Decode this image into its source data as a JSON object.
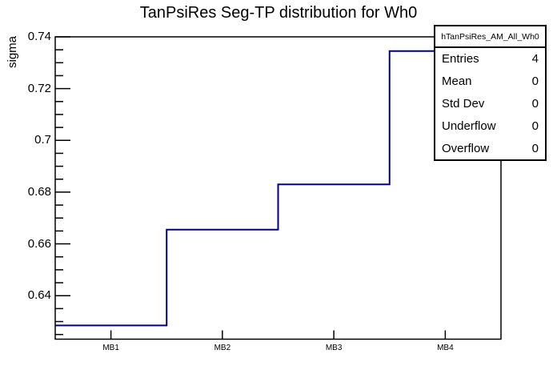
{
  "chart_data": {
    "type": "step-histogram",
    "title": "TanPsiRes Seg-TP distribution for Wh0",
    "ylabel": "sigma",
    "xlabel": "",
    "categories": [
      "MB1",
      "MB2",
      "MB3",
      "MB4"
    ],
    "values": [
      0.6285,
      0.6655,
      0.683,
      0.7345
    ],
    "ylim": [
      0.6232,
      0.74
    ],
    "ytick_labels": [
      "0.64",
      "0.66",
      "0.68",
      "0.7",
      "0.72",
      "0.74"
    ],
    "ytick_minor_step": 0.005,
    "ytick_major_step": 0.02,
    "grid": "off",
    "line_color": "#000080",
    "frame_color": "#000000",
    "background_color": "#ffffff",
    "legend_position": "top-right"
  },
  "stats_box": {
    "title": "hTanPsiRes_AM_All_Wh0",
    "rows": [
      {
        "label": "Entries",
        "value": "4"
      },
      {
        "label": "Mean",
        "value": "0"
      },
      {
        "label": "Std Dev",
        "value": "0"
      },
      {
        "label": "Underflow",
        "value": "0"
      },
      {
        "label": "Overflow",
        "value": "0"
      }
    ]
  }
}
